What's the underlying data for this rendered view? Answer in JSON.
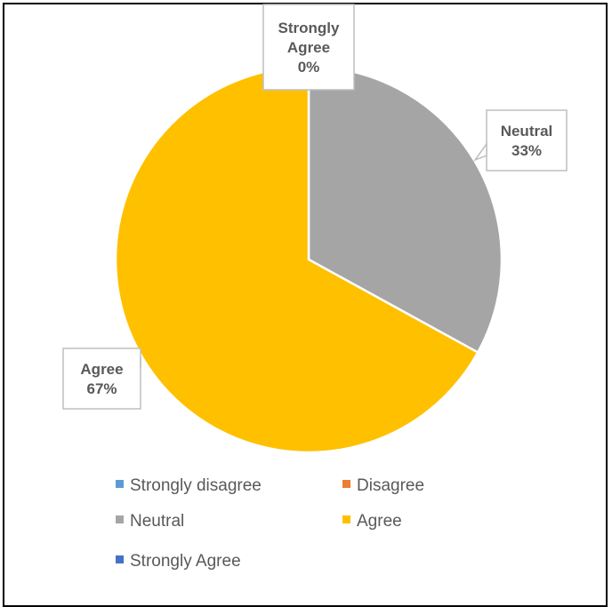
{
  "chart_data": {
    "type": "pie",
    "categories": [
      "Strongly disagree",
      "Disagree",
      "Neutral",
      "Agree",
      "Strongly Agree"
    ],
    "values": [
      0,
      0,
      33,
      67,
      0
    ],
    "data_labels": [
      {
        "category": "Strongly Agree",
        "lines": [
          "Strongly",
          "Agree",
          "0%"
        ]
      },
      {
        "category": "Neutral",
        "lines": [
          "Neutral",
          "33%"
        ]
      },
      {
        "category": "Agree",
        "lines": [
          "Agree",
          "67%"
        ]
      }
    ],
    "colors": [
      "#5B9BD5",
      "#ED7D31",
      "#A5A5A5",
      "#FFC000",
      "#4472C4"
    ],
    "legend": {
      "placement": "bottom",
      "items": [
        "Strongly disagree",
        "Disagree",
        "Neutral",
        "Agree",
        "Strongly Agree"
      ]
    },
    "title": ""
  }
}
